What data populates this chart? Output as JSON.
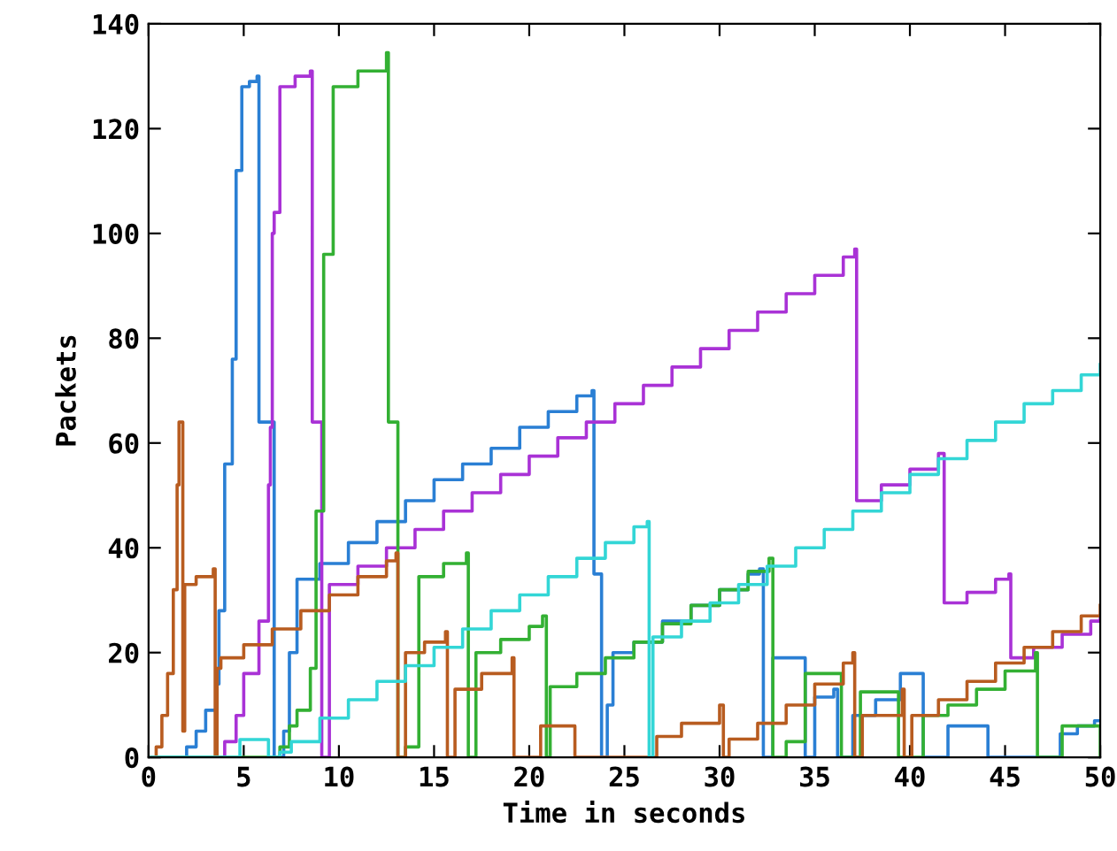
{
  "chart_data": {
    "type": "step",
    "xlabel": "Time in seconds",
    "ylabel": "Packets",
    "xlim": [
      0,
      50
    ],
    "ylim": [
      0,
      140
    ],
    "xticks": [
      0,
      5,
      10,
      15,
      20,
      25,
      30,
      35,
      40,
      45,
      50
    ],
    "yticks": [
      0,
      20,
      40,
      60,
      80,
      100,
      120,
      140
    ],
    "grid": false,
    "legend": false,
    "series": [
      {
        "color": "#2a7fd4",
        "x": [
          0,
          2.0,
          2.5,
          3.0,
          3.6,
          3.7,
          4.0,
          4.4,
          4.6,
          4.9,
          5.3,
          5.7,
          5.8,
          6.6,
          7.1,
          7.4,
          7.8,
          9,
          10.5,
          12,
          13.5,
          15,
          16.5,
          18,
          19.5,
          21,
          22.5,
          23.3,
          23.4,
          23.8,
          24.1,
          24.4,
          25.5,
          27,
          28.5,
          30,
          31.5,
          32.1,
          32.3,
          32.8,
          34.3,
          34.5,
          35,
          36,
          36.2,
          37,
          38.2,
          39.5,
          40.7,
          42,
          43.9,
          44.1,
          47.9,
          48.8,
          49.7,
          50
        ],
        "values": [
          0,
          2,
          5,
          9,
          14,
          28,
          56,
          76,
          112,
          128,
          129,
          130,
          64,
          0,
          5,
          20,
          34,
          37,
          41,
          45,
          49,
          53,
          56,
          59,
          63,
          66,
          69,
          70,
          35,
          0,
          10,
          20,
          22,
          26,
          29,
          32,
          35,
          36,
          0,
          19,
          19,
          0,
          11.5,
          13,
          0,
          8,
          11,
          16,
          0,
          6,
          6,
          0,
          4.5,
          6,
          7,
          7
        ]
      },
      {
        "color": "#a932d6",
        "x": [
          0,
          3.9,
          4.0,
          4.6,
          5.0,
          5.8,
          6.3,
          6.4,
          6.5,
          6.6,
          6.9,
          7.7,
          8.5,
          8.6,
          9.1,
          9.5,
          11,
          12.5,
          14,
          15.5,
          17,
          18.5,
          20,
          21.5,
          23,
          24.5,
          26,
          27.5,
          29,
          30.5,
          32,
          33.5,
          35,
          36.5,
          37.1,
          37.2,
          38.5,
          40,
          41.5,
          41.8,
          43,
          44.5,
          45.2,
          45.3,
          46.5,
          48,
          49.5,
          50
        ],
        "values": [
          0,
          0,
          3,
          8,
          16,
          26,
          52,
          63,
          100,
          104,
          128,
          130,
          131,
          64,
          0,
          33,
          36.5,
          40,
          43.5,
          47,
          50.5,
          54,
          57.5,
          61,
          64,
          67.5,
          71,
          74.5,
          78,
          81.5,
          85,
          88.5,
          92,
          95.5,
          97,
          49,
          52,
          55,
          58,
          29.5,
          31.5,
          34,
          35,
          19,
          21,
          23.5,
          26,
          27
        ]
      },
      {
        "color": "#33b033",
        "x": [
          0,
          6.9,
          7.4,
          7.8,
          8.5,
          8.8,
          9.2,
          9.7,
          11,
          12.5,
          12.6,
          13.1,
          13.5,
          14.2,
          15.5,
          16.7,
          16.8,
          17.2,
          18.5,
          20,
          20.7,
          20.9,
          21.1,
          22.5,
          24,
          25.5,
          27,
          28.5,
          30,
          31.5,
          32.6,
          32.8,
          33.5,
          34.5,
          36.2,
          36.4,
          37.4,
          39.2,
          39.4,
          40.7,
          42,
          43.5,
          45,
          46.6,
          46.7,
          48,
          49.9,
          50
        ],
        "values": [
          0,
          2,
          6,
          9,
          17,
          47,
          96,
          128,
          131,
          134.5,
          64,
          0,
          2,
          34.5,
          37,
          39,
          0,
          20,
          22.5,
          25,
          27,
          0,
          13.5,
          16,
          19,
          22,
          25.5,
          29,
          32,
          35.5,
          38,
          0,
          3,
          16,
          16,
          0,
          12.5,
          12.5,
          0,
          8,
          10,
          13,
          16.5,
          20,
          0,
          6,
          6,
          0
        ]
      },
      {
        "color": "#b85c20",
        "x": [
          0,
          0.4,
          0.7,
          1.0,
          1.3,
          1.5,
          1.6,
          1.8,
          1.9,
          2.5,
          3.4,
          3.5,
          3.6,
          3.8,
          5,
          6.5,
          8,
          9.5,
          11,
          12.5,
          13,
          13.1,
          13.5,
          14.5,
          15.6,
          15.7,
          16.1,
          17.5,
          19.1,
          19.2,
          20.6,
          22.3,
          22.4,
          26.7,
          28,
          30,
          30.2,
          30.5,
          32,
          33.5,
          35,
          36.5,
          37,
          37.1,
          37.5,
          39.6,
          39.7,
          40.1,
          41.5,
          43,
          44.5,
          46,
          47.5,
          49,
          50
        ],
        "values": [
          0,
          2,
          8,
          16,
          32,
          52,
          64,
          5,
          33,
          34.5,
          36,
          0,
          17,
          19,
          21.5,
          24.5,
          28,
          31,
          34.5,
          37.5,
          39,
          0,
          20,
          22,
          24,
          0,
          13,
          16,
          19,
          0,
          6,
          6,
          0,
          4,
          6.5,
          10,
          0,
          3.5,
          6.5,
          10,
          14,
          18,
          20,
          0,
          8,
          13,
          0,
          8,
          11,
          14.5,
          18,
          21,
          24,
          27,
          29
        ]
      },
      {
        "color": "#33d6d6",
        "x": [
          0,
          4.8,
          6.3,
          6.9,
          7.5,
          9,
          10.5,
          12,
          13.5,
          15,
          16.5,
          18,
          19.5,
          21,
          22.5,
          24,
          25.5,
          26.2,
          26.3,
          26.5,
          28,
          29.5,
          31,
          32.5,
          34,
          35.5,
          37,
          38.5,
          40,
          41.5,
          43,
          44.5,
          46,
          47.5,
          49,
          50
        ],
        "values": [
          0,
          3.4,
          0,
          1,
          3,
          7.5,
          11,
          14.5,
          17.5,
          21,
          24.5,
          28,
          31,
          34.5,
          38,
          41,
          44,
          45,
          0,
          23,
          26,
          29.5,
          33,
          36.5,
          40,
          43.5,
          47,
          50.5,
          54,
          57,
          60.5,
          64,
          67.5,
          70,
          73,
          75
        ]
      }
    ]
  }
}
